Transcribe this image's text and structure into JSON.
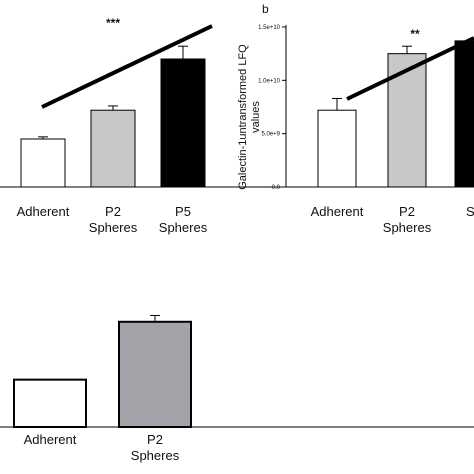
{
  "chart_data": [
    {
      "id": "a",
      "type": "bar",
      "panel_label": "",
      "categories": [
        "Adherent",
        "P2 Spheres",
        "P5 Spheres"
      ],
      "category_lines": [
        [
          "Adherent"
        ],
        [
          "P2",
          "Spheres"
        ],
        [
          "P5",
          "Spheres"
        ]
      ],
      "values": [
        0.45,
        0.72,
        1.2
      ],
      "errors": [
        0.02,
        0.04,
        0.12
      ],
      "colors": [
        "#ffffff",
        "#c8c8c8",
        "#000000"
      ],
      "ylim": [
        0,
        1.5
      ],
      "significance": "***",
      "trend_line": true
    },
    {
      "id": "b",
      "type": "bar",
      "panel_label": "b",
      "categories": [
        "Adherent",
        "P2 Spheres",
        "Spheres"
      ],
      "category_lines": [
        [
          "Adherent"
        ],
        [
          "P2",
          "Spheres"
        ],
        [
          "Sp"
        ]
      ],
      "values": [
        7200000000.0,
        12500000000.0,
        13700000000.0
      ],
      "errors": [
        1100000000.0,
        700000000.0,
        0
      ],
      "colors": [
        "#ffffff",
        "#c8c8c8",
        "#000000"
      ],
      "ylim": [
        0,
        15000000000.0
      ],
      "yticks": [
        0,
        5000000000.0,
        10000000000.0,
        15000000000.0
      ],
      "ytick_labels": [
        "0.0",
        "5.0e+9",
        "1.0e+10",
        "1.5e+10"
      ],
      "ylabel_lines": [
        "Galectin-1untransformed LFQ",
        "values"
      ],
      "significance": "**",
      "trend_line": true
    },
    {
      "id": "c",
      "type": "bar",
      "panel_label": "",
      "categories": [
        "Adherent",
        "P2 Spheres"
      ],
      "category_lines": [
        [
          "Adherent"
        ],
        [
          "P2",
          "Spheres"
        ]
      ],
      "values": [
        0.45,
        1.0
      ],
      "errors": [
        0,
        0.06
      ],
      "colors": [
        "#ffffff",
        "#a3a3aa"
      ],
      "ylim": [
        0,
        1.15
      ]
    }
  ]
}
